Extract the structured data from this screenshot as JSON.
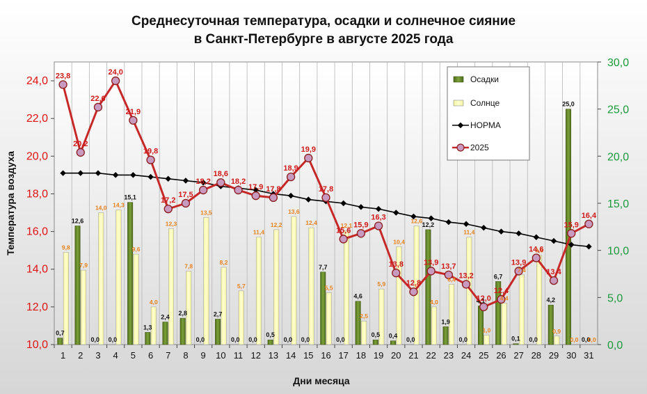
{
  "chart_data": {
    "type": "bar+line",
    "title_line1": "Среднесуточная температура, осадки и солнечное сияние",
    "title_line2": "в Санкт-Петербурге в августе 2025 года",
    "xlabel": "Дни месяца",
    "ylabel_left": "Температура воздуха",
    "ylim_left": [
      10,
      25
    ],
    "ylim_right": [
      0,
      30
    ],
    "yticks_left": [
      "10,0",
      "12,0",
      "14,0",
      "16,0",
      "18,0",
      "20,0",
      "22,0",
      "24,0"
    ],
    "yticks_right": [
      "0,0",
      "5,0",
      "10,0",
      "15,0",
      "20,0",
      "25,0",
      "30,0"
    ],
    "categories": [
      "1",
      "2",
      "3",
      "4",
      "5",
      "6",
      "7",
      "8",
      "9",
      "10",
      "11",
      "12",
      "13",
      "14",
      "15",
      "16",
      "17",
      "18",
      "19",
      "20",
      "21",
      "22",
      "23",
      "24",
      "25",
      "26",
      "27",
      "28",
      "29",
      "30",
      "31"
    ],
    "series": [
      {
        "name": "Осадки",
        "axis": "right",
        "color": "#6b8e23",
        "values": [
          0.7,
          12.6,
          0.0,
          0.0,
          15.1,
          1.3,
          2.4,
          2.8,
          0.0,
          2.7,
          0.0,
          0.0,
          0.5,
          0.0,
          0.0,
          7.7,
          0.0,
          4.6,
          0.5,
          0.4,
          0.0,
          12.2,
          1.9,
          0.0,
          4.1,
          6.7,
          0.1,
          0.0,
          4.2,
          25.0,
          0.0
        ],
        "labels": [
          "0,7",
          "12,6",
          "0,0",
          "0,0",
          "15,1",
          "1,3",
          "2,4",
          "2,8",
          "0,0",
          "2,7",
          "0,0",
          "0,0",
          "0,5",
          "0,0",
          "0,0",
          "7,7",
          "0,0",
          "4,6",
          "0,5",
          "0,4",
          "0,0",
          "12,2",
          "1,9",
          "0,0",
          "4,1",
          "6,7",
          "0,1",
          "0,0",
          "4,2",
          "25,0",
          "0,0"
        ]
      },
      {
        "name": "Солнце",
        "axis": "right",
        "color": "#ffffb0",
        "values": [
          9.8,
          7.9,
          14.0,
          14.3,
          9.6,
          4.0,
          12.3,
          7.8,
          13.5,
          8.2,
          5.7,
          11.4,
          12.2,
          13.6,
          12.4,
          5.5,
          12.1,
          2.5,
          5.9,
          10.4,
          12.6,
          4.0,
          6.4,
          11.4,
          1.0,
          4.4,
          7.4,
          9.5,
          0.9,
          0.0,
          0.0
        ],
        "labels": [
          "9,8",
          "7,9",
          "14,0",
          "14,3",
          "9,6",
          "4,0",
          "12,3",
          "7,8",
          "13,5",
          "8,2",
          "5,7",
          "11,4",
          "12,2",
          "13,6",
          "12,4",
          "5,5",
          "12,1",
          "2,5",
          "5,9",
          "10,4",
          "12,6",
          "4,0",
          "6,4",
          "11,4",
          "1,0",
          "4,4",
          "7,4",
          "9,5",
          "0,9",
          "0,0",
          "0,0"
        ]
      },
      {
        "name": "НОРМА",
        "axis": "left",
        "color": "#000000",
        "values": [
          19.1,
          19.1,
          19.1,
          19.0,
          19.0,
          18.9,
          18.8,
          18.7,
          18.6,
          18.4,
          18.3,
          18.2,
          18.0,
          17.9,
          17.7,
          17.6,
          17.5,
          17.3,
          17.2,
          17.0,
          16.8,
          16.7,
          16.5,
          16.4,
          16.2,
          16.0,
          15.9,
          15.7,
          15.5,
          15.3,
          15.2
        ]
      },
      {
        "name": "2025",
        "axis": "left",
        "color": "#c62828",
        "values": [
          23.8,
          20.2,
          22.6,
          24.0,
          21.9,
          19.8,
          17.2,
          17.5,
          18.2,
          18.6,
          18.2,
          17.9,
          17.8,
          18.9,
          19.9,
          17.8,
          15.6,
          15.9,
          16.3,
          13.8,
          12.8,
          13.9,
          13.7,
          13.2,
          12.0,
          12.4,
          13.9,
          14.6,
          13.4,
          15.9,
          16.4
        ],
        "labels": [
          "23,8",
          "20,2",
          "22,6",
          "24,0",
          "21,9",
          "19,8",
          "17,2",
          "17,5",
          "18,2",
          "18,6",
          "18,2",
          "17,9",
          "17,8",
          "18,9",
          "19,9",
          "17,8",
          "15,6",
          "15,9",
          "16,3",
          "13,8",
          "12,8",
          "13,9",
          "13,7",
          "13,2",
          "12,0",
          "12,4",
          "13,9",
          "14,6",
          "13,4",
          "15,9",
          "16,4"
        ]
      }
    ],
    "legend_position": "top-right",
    "grid": "vertical"
  }
}
